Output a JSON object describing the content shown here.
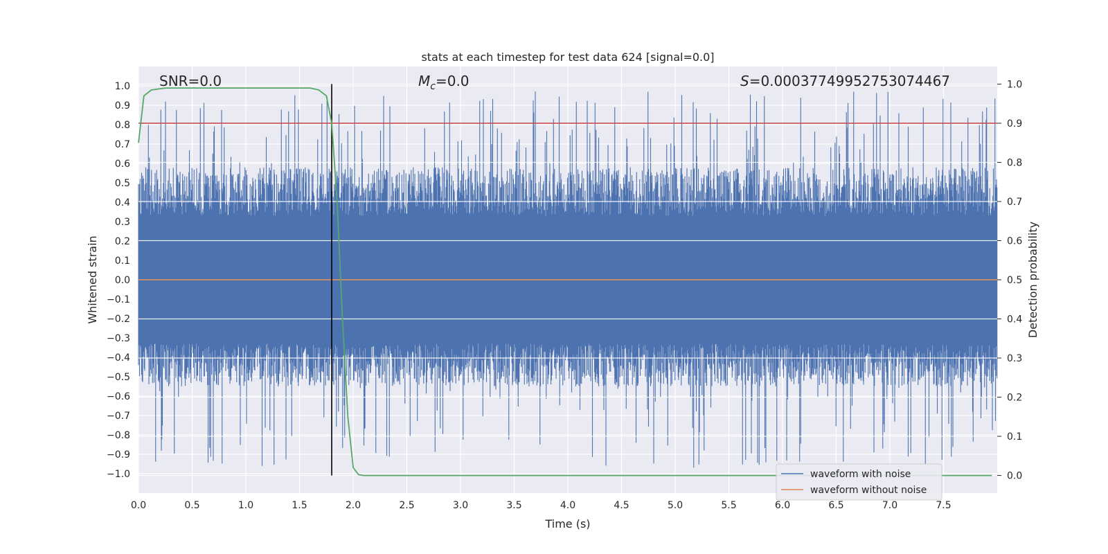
{
  "chart_data": {
    "type": "line",
    "title": "stats at each timestep for test data 624 [signal=0.0]",
    "xlabel": "Time (s)",
    "ylabel": "Whitened strain",
    "y2label": "Detection probability",
    "xlim": [
      0.0,
      8.0
    ],
    "ylim": [
      -1.1,
      1.1
    ],
    "y2lim": [
      -0.045,
      1.045
    ],
    "xticks": [
      "0.0",
      "0.5",
      "1.0",
      "1.5",
      "2.0",
      "2.5",
      "3.0",
      "3.5",
      "4.0",
      "4.5",
      "5.0",
      "5.5",
      "6.0",
      "6.5",
      "7.0",
      "7.5"
    ],
    "yticks": [
      "1.0",
      "0.9",
      "0.8",
      "0.7",
      "0.6",
      "0.5",
      "0.4",
      "0.3",
      "0.2",
      "0.1",
      "0.0",
      "−0.1",
      "−0.2",
      "−0.3",
      "−0.4",
      "−0.5",
      "−0.6",
      "−0.7",
      "−0.8",
      "−0.9",
      "−1.0"
    ],
    "y2ticks": [
      "1.0",
      "0.9",
      "0.8",
      "0.7",
      "0.6",
      "0.5",
      "0.4",
      "0.3",
      "0.2",
      "0.1",
      "0.0"
    ],
    "annotations": {
      "snr": "SNR=0.0",
      "mc_symbol": "M",
      "mc_sub": "c",
      "mc_value": "=0.0",
      "s_symbol": "S",
      "s_value": "=0.00037749952753074467"
    },
    "grid": true,
    "legend_position": "lower-right",
    "series": [
      {
        "name": "waveform with noise",
        "color": "#4c72b0",
        "description_level": "noise amplitude envelope ~0.45 typical, peaks to ~1.0"
      },
      {
        "name": "waveform without noise",
        "color": "#dd8452",
        "values_constant": 0.0
      }
    ],
    "detection_probability": {
      "color": "#55a868",
      "x": [
        0.0,
        0.05,
        0.12,
        0.25,
        0.5,
        1.0,
        1.5,
        1.6,
        1.68,
        1.75,
        1.8,
        1.85,
        1.9,
        1.95,
        2.0,
        2.05,
        2.1,
        2.5,
        3.0,
        4.0,
        5.0,
        6.0,
        7.0,
        7.95
      ],
      "y": [
        0.85,
        0.97,
        0.985,
        0.99,
        0.99,
        0.99,
        0.99,
        0.99,
        0.985,
        0.97,
        0.9,
        0.7,
        0.4,
        0.15,
        0.02,
        0.002,
        0.0,
        0.0,
        0.0,
        0.0,
        0.0,
        0.0,
        0.0,
        0.0
      ]
    },
    "threshold_line": {
      "color": "#c44e52",
      "y2": 0.9
    },
    "vertical_line": {
      "color": "#000000",
      "x": 1.8
    }
  }
}
